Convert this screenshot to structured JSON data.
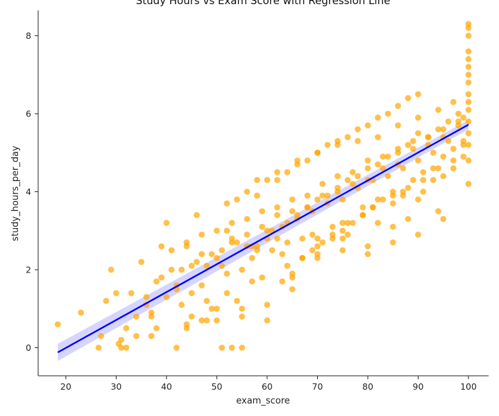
{
  "chart_data": {
    "type": "scatter",
    "title": "Study Hours vs Exam Score with Regression Line",
    "xlabel": "exam_score",
    "ylabel": "study_hours_per_day",
    "xlim": [
      14.5,
      104
    ],
    "ylim": [
      -0.72,
      8.65
    ],
    "xticks": [
      20,
      30,
      40,
      50,
      60,
      70,
      80,
      90,
      100
    ],
    "yticks": [
      0,
      2,
      4,
      6,
      8
    ],
    "grid": false,
    "legend": "none",
    "series": [
      {
        "kind": "scatter",
        "color": "#ffa500",
        "x": [
          18.4,
          23,
          26.5,
          27,
          28,
          30,
          31,
          32,
          30.5,
          34,
          36,
          37,
          38,
          40,
          42,
          44,
          45,
          47,
          48,
          50,
          52,
          54,
          55,
          57,
          59,
          43,
          46,
          49,
          51,
          53,
          56,
          58,
          60,
          61,
          62,
          64,
          66,
          68,
          70,
          72,
          74,
          76,
          78,
          80,
          82,
          84,
          86,
          88,
          90,
          92,
          94,
          96,
          98,
          99,
          100,
          100,
          100,
          100,
          100,
          100,
          100,
          100,
          100,
          100,
          100,
          100,
          100,
          100,
          100,
          100,
          35,
          38,
          41,
          44,
          47,
          50,
          53,
          56,
          59,
          62,
          65,
          68,
          71,
          74,
          77,
          80,
          83,
          86,
          89,
          92,
          95,
          98,
          33,
          36,
          39,
          42,
          45,
          48,
          51,
          54,
          57,
          60,
          63,
          66,
          69,
          72,
          75,
          78,
          81,
          84,
          87,
          90,
          93,
          96,
          99,
          41,
          44,
          47,
          50,
          53,
          56,
          59,
          62,
          65,
          68,
          71,
          74,
          77,
          80,
          83,
          86,
          89,
          92,
          95,
          98,
          45,
          50,
          55,
          60,
          65,
          70,
          75,
          80,
          85,
          90,
          95,
          58,
          62,
          66,
          70,
          74,
          78,
          82,
          86,
          90,
          94,
          97,
          64,
          67,
          70,
          73,
          76,
          79,
          82,
          85,
          88,
          91,
          94,
          97,
          40,
          46,
          52,
          58,
          64,
          70,
          76,
          82,
          88,
          94,
          29,
          32,
          37,
          39,
          43,
          48,
          52,
          55,
          57,
          61,
          63,
          67,
          69,
          73,
          75,
          79,
          81,
          85,
          87,
          91,
          93,
          95,
          97,
          99,
          52,
          54,
          56,
          58,
          60,
          62,
          64,
          66,
          68,
          70,
          72,
          74,
          76,
          78,
          80,
          82,
          84,
          86,
          88,
          90,
          55,
          60,
          65,
          70,
          75,
          80,
          85,
          90,
          31,
          34,
          37,
          42,
          44,
          47,
          49,
          51,
          53,
          63,
          65,
          67,
          69,
          71,
          73,
          75,
          77,
          79,
          81,
          83,
          85,
          87,
          89,
          91,
          93,
          95,
          97,
          99
        ],
        "y": [
          0.6,
          0.9,
          0,
          0.3,
          1.2,
          1.4,
          0.2,
          0.5,
          0.1,
          0.8,
          1.1,
          0.9,
          0.5,
          1.3,
          1.5,
          0.6,
          1.4,
          1.6,
          1.2,
          1.0,
          1.4,
          1.2,
          1.0,
          1.7,
          1.8,
          2.0,
          2.2,
          2.4,
          2.1,
          2.7,
          2.6,
          2.5,
          2.8,
          3.0,
          2.8,
          3.2,
          3.4,
          3.6,
          3.8,
          3.9,
          4.1,
          4.3,
          4.4,
          4.6,
          4.7,
          4.9,
          5.0,
          5.2,
          5.5,
          5.4,
          5.6,
          5.8,
          6.0,
          5.9,
          4.2,
          4.8,
          5.2,
          5.5,
          5.8,
          6.1,
          6.3,
          6.5,
          6.8,
          7.0,
          7.2,
          7.4,
          7.6,
          8.0,
          8.2,
          8.3,
          2.2,
          1.7,
          2.0,
          2.6,
          2.4,
          2.3,
          2.8,
          2.9,
          3.1,
          3.4,
          3.5,
          3.6,
          3.9,
          4.0,
          4.2,
          4.3,
          4.6,
          4.7,
          5.1,
          5.2,
          5.4,
          5.7,
          1.4,
          1.3,
          1.8,
          1.6,
          2.1,
          2.1,
          2.5,
          2.7,
          2.6,
          3.0,
          3.1,
          3.3,
          3.5,
          3.7,
          3.8,
          4.1,
          4.3,
          4.4,
          4.6,
          4.8,
          5.0,
          5.3,
          5.2,
          2.5,
          2.7,
          2.9,
          3.0,
          3.2,
          3.3,
          3.5,
          3.6,
          3.8,
          3.9,
          4.2,
          4.4,
          4.5,
          4.8,
          4.9,
          5.1,
          5.3,
          5.4,
          5.6,
          5.8,
          0.8,
          0.7,
          0.8,
          1.1,
          1.8,
          2.4,
          2.8,
          2.6,
          3.1,
          3.8,
          3.3,
          4.3,
          4.5,
          4.8,
          5.0,
          5.2,
          5.3,
          5.4,
          5.7,
          5.9,
          6.1,
          6.3,
          2.1,
          2.3,
          2.8,
          2.9,
          3.2,
          3.6,
          3.8,
          4.0,
          4.1,
          4.3,
          4.6,
          4.8,
          3.2,
          3.4,
          3.0,
          2.6,
          2.7,
          2.6,
          2.9,
          3.2,
          3.3,
          3.5,
          2.0,
          0,
          0.3,
          2.6,
          1.1,
          0.7,
          1.9,
          2.0,
          2.3,
          2.5,
          2.4,
          2.8,
          2.9,
          3.1,
          3.2,
          3.4,
          3.6,
          3.7,
          3.9,
          4.0,
          4.3,
          4.4,
          4.6,
          4.9,
          3.7,
          3.8,
          4.0,
          3.9,
          4.3,
          4.3,
          4.5,
          4.7,
          4.8,
          5.0,
          5.2,
          5.3,
          5.4,
          5.6,
          5.7,
          5.9,
          6.0,
          6.2,
          6.4,
          6.5,
          0,
          0.7,
          1.5,
          2.3,
          2.5,
          2.4,
          2.7,
          2.9,
          0,
          0.3,
          0.8,
          0,
          0.5,
          0.7,
          1.0,
          0,
          0,
          1.7,
          1.9,
          2.3,
          2.5,
          2.7,
          2.8,
          3.0,
          3.2,
          3.4,
          3.6,
          3.8,
          3.9,
          4.0,
          4.3,
          4.5,
          4.6,
          4.9,
          5.1,
          5.3
        ]
      }
    ],
    "regression": {
      "color": "#0000ff",
      "band_color": "#b3b3ff",
      "x": [
        18.4,
        100
      ],
      "y": [
        -0.12,
        5.72
      ],
      "band_lower": [
        -0.34,
        5.6
      ],
      "band_upper": [
        0.1,
        5.84
      ]
    }
  }
}
